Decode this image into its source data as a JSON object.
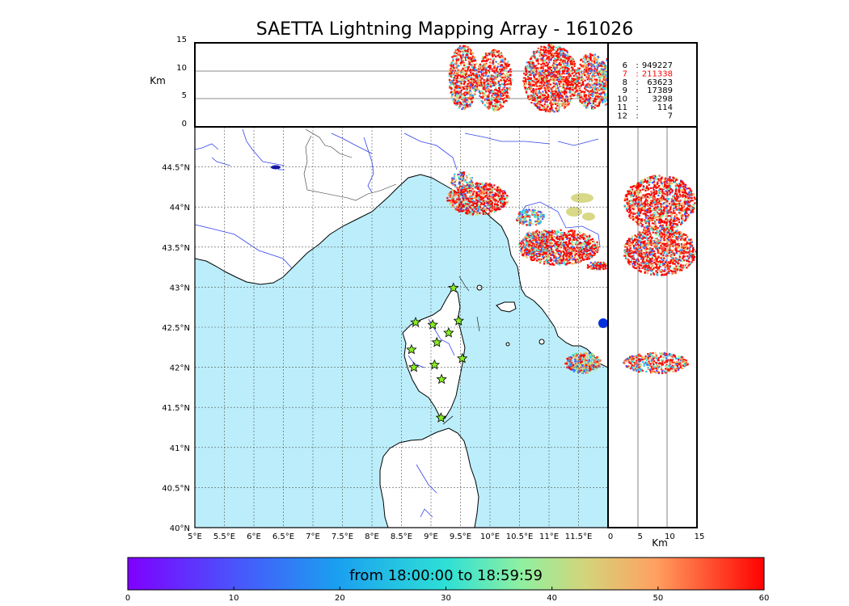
{
  "title": "SAETTA Lightning Mapping Array - 161026",
  "altitude_panel": {
    "ylabel": "Km",
    "yticks": [
      "15",
      "10",
      "5",
      "0"
    ],
    "ylim": [
      0,
      15
    ]
  },
  "side_panel": {
    "xlabel": "Km",
    "xticks": [
      "0",
      "5",
      "10",
      "15"
    ],
    "xlim": [
      0,
      15
    ]
  },
  "map": {
    "lon_ticks": [
      "5°E",
      "5.5°E",
      "6°E",
      "6.5°E",
      "7°E",
      "7.5°E",
      "8°E",
      "8.5°E",
      "9°E",
      "9.5°E",
      "10°E",
      "10.5°E",
      "11°E",
      "11.5°E"
    ],
    "lat_ticks": [
      "44.5°N",
      "44°N",
      "43.5°N",
      "43°N",
      "42.5°N",
      "42°N",
      "41.5°N",
      "41°N",
      "40.5°N",
      "40°N"
    ],
    "lon_range": [
      5,
      12
    ],
    "lat_range": [
      40,
      45
    ],
    "sea_color": "#bbeefa",
    "land_color": "#ffffff",
    "station_color": "#88ee22",
    "stations": [
      {
        "lon": 9.38,
        "lat": 42.99
      },
      {
        "lon": 8.74,
        "lat": 42.56
      },
      {
        "lon": 9.03,
        "lat": 42.53
      },
      {
        "lon": 9.47,
        "lat": 42.58
      },
      {
        "lon": 9.3,
        "lat": 42.43
      },
      {
        "lon": 9.1,
        "lat": 42.31
      },
      {
        "lon": 8.67,
        "lat": 42.22
      },
      {
        "lon": 9.53,
        "lat": 42.11
      },
      {
        "lon": 8.71,
        "lat": 42.0
      },
      {
        "lon": 9.06,
        "lat": 42.03
      },
      {
        "lon": 9.18,
        "lat": 41.85
      },
      {
        "lon": 9.17,
        "lat": 41.37
      }
    ]
  },
  "station_counts": [
    {
      "stations": "6",
      "sep": ":",
      "count": "949227",
      "color": "#000000"
    },
    {
      "stations": "7",
      "sep": ":",
      "count": "211338",
      "color": "#ff0000"
    },
    {
      "stations": "8",
      "sep": ":",
      "count": "63623",
      "color": "#000000"
    },
    {
      "stations": "9",
      "sep": ":",
      "count": "17389",
      "color": "#000000"
    },
    {
      "stations": "10",
      "sep": ":",
      "count": "3298",
      "color": "#000000"
    },
    {
      "stations": "11",
      "sep": ":",
      "count": "114",
      "color": "#000000"
    },
    {
      "stations": "12",
      "sep": ":",
      "count": "7",
      "color": "#000000"
    }
  ],
  "colorbar": {
    "label": "from 18:00:00 to 18:59:59",
    "ticks": [
      "0",
      "10",
      "20",
      "30",
      "40",
      "50",
      "60"
    ],
    "range": [
      0,
      60
    ]
  }
}
